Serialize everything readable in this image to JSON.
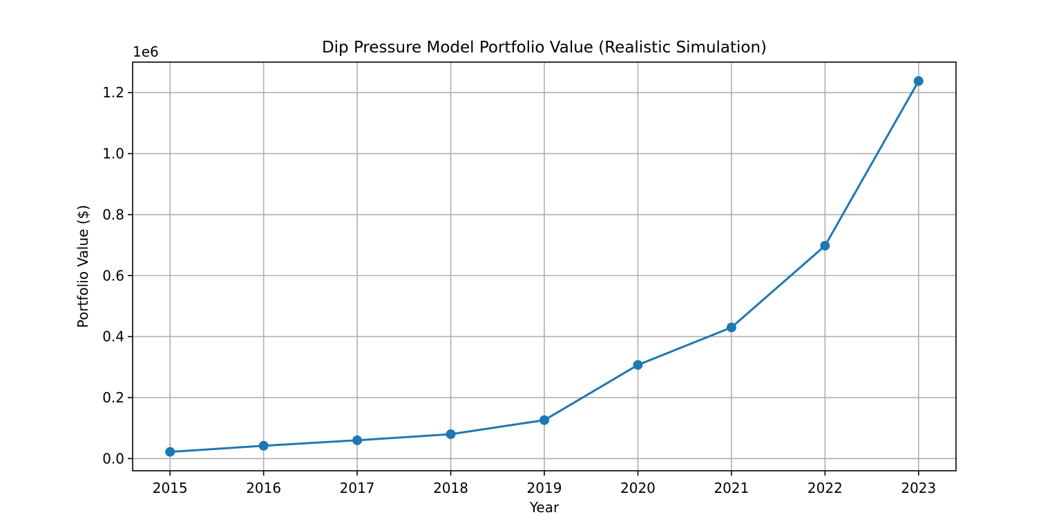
{
  "chart_data": {
    "type": "line",
    "title": "Dip Pressure Model Portfolio Value (Realistic Simulation)",
    "xlabel": "Year",
    "ylabel": "Portfolio Value ($)",
    "y_offset_text": "1e6",
    "y_scale_multiplier": 1000000,
    "x": [
      2015,
      2016,
      2017,
      2018,
      2019,
      2020,
      2021,
      2022,
      2023
    ],
    "series": [
      {
        "values": [
          22000,
          42000,
          60000,
          80000,
          126000,
          307000,
          430000,
          698000,
          1238000
        ],
        "color": "#1f77b4",
        "marker": "circle"
      }
    ],
    "xlim": [
      2014.6,
      2023.4
    ],
    "ylim": [
      -0.04,
      1.3
    ],
    "x_ticks": [
      "2015",
      "2016",
      "2017",
      "2018",
      "2019",
      "2020",
      "2021",
      "2022",
      "2023"
    ],
    "y_ticks": [
      "0.0",
      "0.2",
      "0.4",
      "0.6",
      "0.8",
      "1.0",
      "1.2"
    ],
    "grid": true,
    "legend": "none"
  }
}
